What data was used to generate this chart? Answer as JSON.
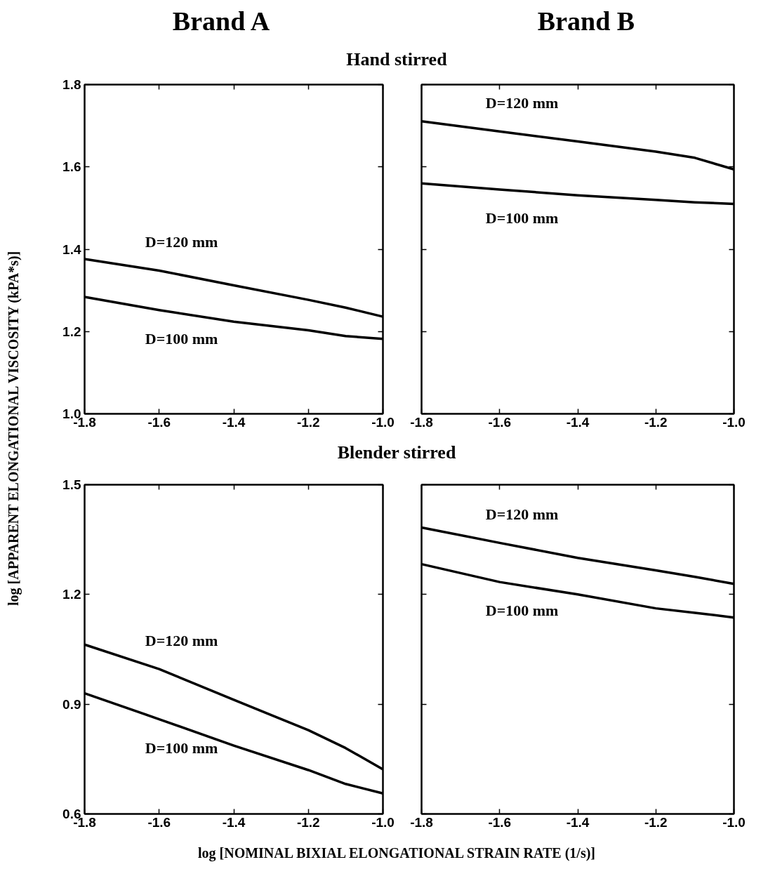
{
  "chart_data": [
    {
      "type": "line",
      "title": "Brand  A",
      "subtitle": "Hand stirred",
      "ylabel": "log [APPARENT ELONGATIONAL VISCOSITY (kPA*s)]",
      "xlim": [
        -1.8,
        -1.0
      ],
      "xticks": [
        {
          "value": -1.8,
          "label": "-1.8"
        },
        {
          "value": -1.6,
          "label": "-1.6"
        },
        {
          "value": -1.4,
          "label": "-1.4"
        },
        {
          "value": -1.2,
          "label": "-1.2"
        },
        {
          "value": -1.0,
          "label": "-1.0"
        }
      ],
      "ylim": [
        1.0,
        1.8
      ],
      "yticks": [
        {
          "value": 1.0,
          "label": "1.0"
        },
        {
          "value": 1.2,
          "label": "1.2"
        },
        {
          "value": 1.4,
          "label": "1.4"
        },
        {
          "value": 1.6,
          "label": "1.6"
        },
        {
          "value": 1.8,
          "label": "1.8"
        }
      ],
      "grid": false,
      "line_style": "solid",
      "x": [
        -1.8,
        -1.6,
        -1.4,
        -1.2,
        -1.1,
        -1.0
      ],
      "series": [
        {
          "name": "D=120 mm",
          "color": "#000000",
          "values": [
            1.376,
            1.348,
            1.312,
            1.277,
            1.258,
            1.236
          ]
        },
        {
          "name": "D=100 mm",
          "color": "#000000",
          "values": [
            1.284,
            1.252,
            1.224,
            1.203,
            1.189,
            1.182
          ]
        }
      ]
    },
    {
      "type": "line",
      "title": "Brand B",
      "xlim": [
        -1.8,
        -1.0
      ],
      "xticks": [
        {
          "value": -1.8,
          "label": "-1.8"
        },
        {
          "value": -1.6,
          "label": "-1.6"
        },
        {
          "value": -1.4,
          "label": "-1.4"
        },
        {
          "value": -1.2,
          "label": "-1.2"
        },
        {
          "value": -1.0,
          "label": "-1.0"
        }
      ],
      "ylim": [
        1.0,
        1.8
      ],
      "yticks": [
        1.0,
        1.2,
        1.4,
        1.6,
        1.8
      ],
      "tick_labels": "x",
      "grid": false,
      "line_style": "solid",
      "x": [
        -1.8,
        -1.6,
        -1.4,
        -1.2,
        -1.1,
        -1.0
      ],
      "series": [
        {
          "name": "D=120 mm",
          "color": "#000000",
          "values": [
            1.711,
            1.686,
            1.662,
            1.637,
            1.622,
            1.594
          ]
        },
        {
          "name": "D=100 mm",
          "color": "#000000",
          "values": [
            1.56,
            1.545,
            1.531,
            1.52,
            1.514,
            1.51
          ]
        }
      ]
    },
    {
      "type": "line",
      "subtitle": "Blender stirred",
      "xlabel": "log [NOMINAL BIXIAL ELONGATIONAL STRAIN RATE (1/s)]",
      "xlim": [
        -1.8,
        -1.0
      ],
      "xticks": [
        {
          "value": -1.8,
          "label": "-1.8"
        },
        {
          "value": -1.6,
          "label": "-1.6"
        },
        {
          "value": -1.4,
          "label": "-1.4"
        },
        {
          "value": -1.2,
          "label": "-1.2"
        },
        {
          "value": -1.0,
          "label": "-1.0"
        }
      ],
      "ylim": [
        0.6,
        1.5
      ],
      "yticks": [
        {
          "value": 0.6,
          "label": "0.6"
        },
        {
          "value": 0.9,
          "label": "0.9"
        },
        {
          "value": 1.2,
          "label": "1.2"
        },
        {
          "value": 1.5,
          "label": "1.5"
        }
      ],
      "grid": false,
      "line_style": "solid",
      "x": [
        -1.8,
        -1.6,
        -1.4,
        -1.2,
        -1.1,
        -1.0
      ],
      "series": [
        {
          "name": "D=120 mm",
          "color": "#000000",
          "values": [
            1.063,
            0.996,
            0.912,
            0.829,
            0.78,
            0.722
          ]
        },
        {
          "name": "D=100 mm",
          "color": "#000000",
          "values": [
            0.93,
            0.859,
            0.787,
            0.72,
            0.682,
            0.656
          ]
        }
      ]
    },
    {
      "type": "line",
      "xlim": [
        -1.8,
        -1.0
      ],
      "xticks": [
        {
          "value": -1.8,
          "label": "-1.8"
        },
        {
          "value": -1.6,
          "label": "-1.6"
        },
        {
          "value": -1.4,
          "label": "-1.4"
        },
        {
          "value": -1.2,
          "label": "-1.2"
        },
        {
          "value": -1.0,
          "label": "-1.0"
        }
      ],
      "ylim": [
        0.6,
        1.5
      ],
      "yticks": [
        0.6,
        0.9,
        1.2,
        1.5
      ],
      "tick_labels": "x",
      "grid": false,
      "line_style": "solid",
      "x": [
        -1.8,
        -1.6,
        -1.4,
        -1.2,
        -1.1,
        -1.0
      ],
      "series": [
        {
          "name": "D=120 mm",
          "color": "#000000",
          "values": [
            1.383,
            1.341,
            1.3,
            1.266,
            1.248,
            1.229
          ]
        },
        {
          "name": "D=100 mm",
          "color": "#000000",
          "values": [
            1.283,
            1.234,
            1.2,
            1.162,
            1.15,
            1.137
          ]
        }
      ]
    }
  ]
}
